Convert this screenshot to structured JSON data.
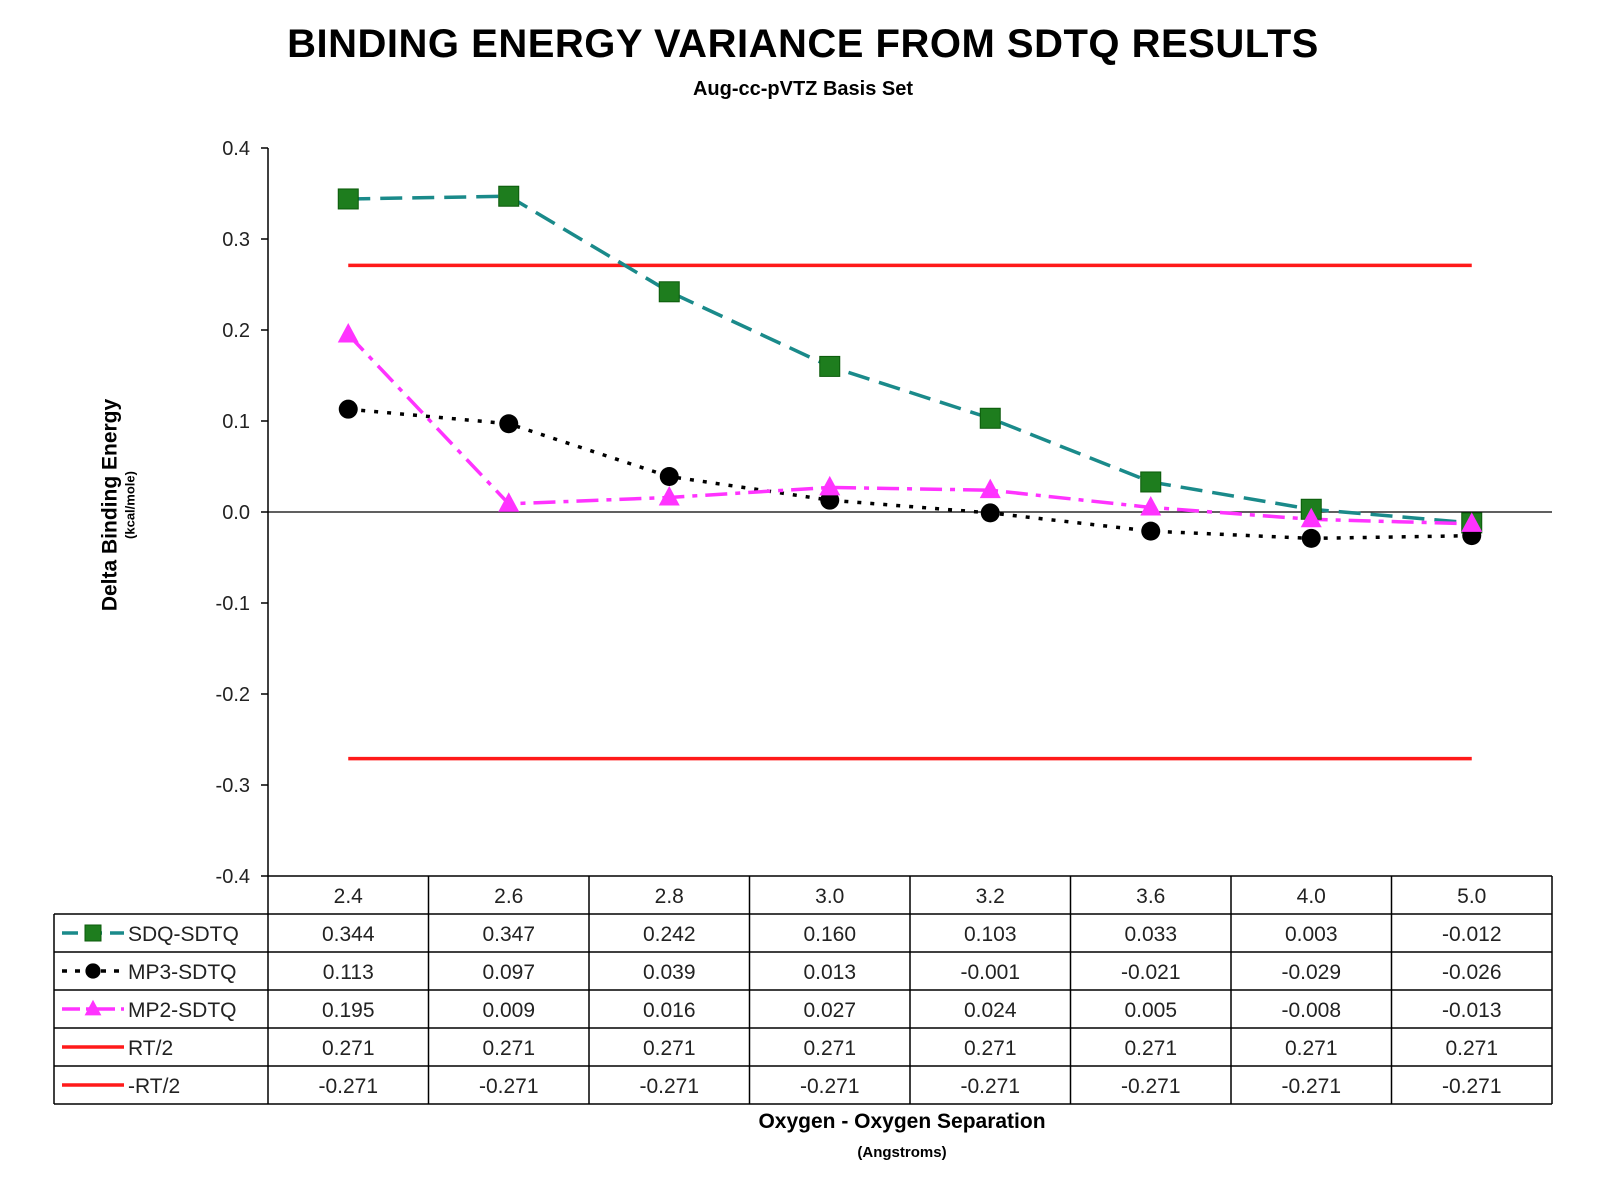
{
  "chart_data": {
    "type": "line",
    "title": "BINDING ENERGY VARIANCE FROM SDTQ RESULTS",
    "subtitle": "Aug-cc-pVTZ Basis Set",
    "xlabel": "Oxygen - Oxygen Separation",
    "xlabel_unit": "(Angstroms)",
    "ylabel": "Delta Binding Energy",
    "ylabel_unit": "(kcal/mole)",
    "ylim": [
      -0.4,
      0.4
    ],
    "yticks": [
      "0.4",
      "0.3",
      "0.2",
      "0.1",
      "0.0",
      "-0.1",
      "-0.2",
      "-0.3",
      "-0.4"
    ],
    "categories": [
      "2.4",
      "2.6",
      "2.8",
      "3.0",
      "3.2",
      "3.6",
      "4.0",
      "5.0"
    ],
    "data_table": true,
    "series": [
      {
        "name": "SDQ-SDTQ",
        "color": "#1a8a8a",
        "marker": "square",
        "marker_color": "#1e7d1e",
        "line_style": "long-dash",
        "values": [
          0.344,
          0.347,
          0.242,
          0.16,
          0.103,
          0.033,
          0.003,
          -0.012
        ],
        "labels": [
          "0.344",
          "0.347",
          "0.242",
          "0.160",
          "0.103",
          "0.033",
          "0.003",
          "-0.012"
        ]
      },
      {
        "name": "MP3-SDTQ",
        "color": "#000000",
        "marker": "circle",
        "marker_color": "#000000",
        "line_style": "dotted",
        "values": [
          0.113,
          0.097,
          0.039,
          0.013,
          -0.001,
          -0.021,
          -0.029,
          -0.026
        ],
        "labels": [
          "0.113",
          "0.097",
          "0.039",
          "0.013",
          "-0.001",
          "-0.021",
          "-0.029",
          "-0.026"
        ]
      },
      {
        "name": "MP2-SDTQ",
        "color": "#ff33ff",
        "marker": "triangle",
        "marker_color": "#ff33ff",
        "line_style": "dash-dot",
        "values": [
          0.195,
          0.009,
          0.016,
          0.027,
          0.024,
          0.005,
          -0.008,
          -0.013
        ],
        "labels": [
          "0.195",
          "0.009",
          "0.016",
          "0.027",
          "0.024",
          "0.005",
          "-0.008",
          "-0.013"
        ]
      },
      {
        "name": "RT/2",
        "color": "#ff1a1a",
        "marker": "none",
        "marker_color": "#ff1a1a",
        "line_style": "solid",
        "values": [
          0.271,
          0.271,
          0.271,
          0.271,
          0.271,
          0.271,
          0.271,
          0.271
        ],
        "labels": [
          "0.271",
          "0.271",
          "0.271",
          "0.271",
          "0.271",
          "0.271",
          "0.271",
          "0.271"
        ]
      },
      {
        "name": "-RT/2",
        "color": "#ff1a1a",
        "marker": "none",
        "marker_color": "#ff1a1a",
        "line_style": "solid",
        "values": [
          -0.271,
          -0.271,
          -0.271,
          -0.271,
          -0.271,
          -0.271,
          -0.271,
          -0.271
        ],
        "labels": [
          "-0.271",
          "-0.271",
          "-0.271",
          "-0.271",
          "-0.271",
          "-0.271",
          "-0.271",
          "-0.271"
        ]
      }
    ]
  }
}
